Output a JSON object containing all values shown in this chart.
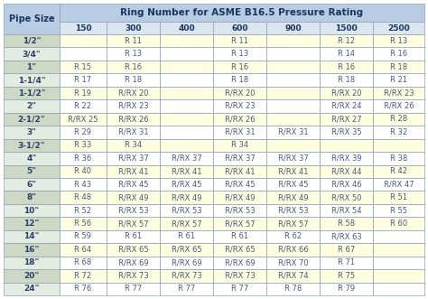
{
  "title": "Ring Number for ASME B16.5 Pressure Rating",
  "pressure_ratings": [
    "150",
    "300",
    "400",
    "600",
    "900",
    "1500",
    "2500"
  ],
  "rows": [
    [
      "1/2\"",
      "",
      "R 11",
      "",
      "R 11",
      "",
      "R 12",
      "R 13"
    ],
    [
      "3/4\"",
      "",
      "R 13",
      "",
      "R 13",
      "",
      "R 14",
      "R 16"
    ],
    [
      "1\"",
      "R 15",
      "R 16",
      "",
      "R 16",
      "",
      "R 16",
      "R 18"
    ],
    [
      "1-1/4\"",
      "R 17",
      "R 18",
      "",
      "R 18",
      "",
      "R 18",
      "R 21"
    ],
    [
      "1-1/2\"",
      "R 19",
      "R/RX 20",
      "",
      "R/RX 20",
      "",
      "R/RX 20",
      "R/RX 23"
    ],
    [
      "2\"",
      "R 22",
      "R/RX 23",
      "",
      "R/RX 23",
      "",
      "R/RX 24",
      "R/RX 26"
    ],
    [
      "2-1/2\"",
      "R/RX 25",
      "R/RX 26",
      "",
      "R/RX 26",
      "",
      "R/RX 27",
      "R 28"
    ],
    [
      "3\"",
      "R 29",
      "R/RX 31",
      "",
      "R/RX 31",
      "R/RX 31",
      "R/RX 35",
      "R 32"
    ],
    [
      "3-1/2\"",
      "R 33",
      "R 34",
      "",
      "R 34",
      "",
      "",
      ""
    ],
    [
      "4\"",
      "R 36",
      "R/RX 37",
      "R/RX 37",
      "R/RX 37",
      "R/RX 37",
      "R/RX 39",
      "R 38"
    ],
    [
      "5\"",
      "R 40",
      "R/RX 41",
      "R/RX 41",
      "R/RX 41",
      "R/RX 41",
      "R/RX 44",
      "R 42"
    ],
    [
      "6\"",
      "R 43",
      "R/RX 45",
      "R/RX 45",
      "R/RX 45",
      "R/RX 45",
      "R/RX 46",
      "R/RX 47"
    ],
    [
      "8\"",
      "R 48",
      "R/RX 49",
      "R/RX 49",
      "R/RX 49",
      "R/RX 49",
      "R/RX 50",
      "R 51"
    ],
    [
      "10\"",
      "R 52",
      "R/RX 53",
      "R/RX 53",
      "R/RX 53",
      "R/RX 53",
      "R/RX 54",
      "R 55"
    ],
    [
      "12\"",
      "R 56",
      "R/RX 57",
      "R/RX 57",
      "R/RX 57",
      "R/RX 57",
      "R 58",
      "R 60"
    ],
    [
      "14\"",
      "R 59",
      "R 61",
      "R 61",
      "R 61",
      "R 62",
      "R/RX 63",
      ""
    ],
    [
      "16\"",
      "R 64",
      "R/RX 65",
      "R/RX 65",
      "R/RX 65",
      "R/RX 66",
      "R 67",
      ""
    ],
    [
      "18\"",
      "R 68",
      "R/RX 69",
      "R/RX 69",
      "R/RX 69",
      "R/RX 70",
      "R 71",
      ""
    ],
    [
      "20\"",
      "R 72",
      "R/RX 73",
      "R/RX 73",
      "R/RX 73",
      "R/RX 74",
      "R 75",
      ""
    ],
    [
      "24\"",
      "R 76",
      "R 77",
      "R 77",
      "R 77",
      "R 78",
      "R 79",
      ""
    ]
  ],
  "header_bg": "#b8cce4",
  "subheader_bg": "#dce6f1",
  "pipe_col_bg_odd": "#cdd9c5",
  "pipe_col_bg_even": "#e2ece0",
  "data_bg_odd": "#fefee0",
  "data_bg_even": "#ffffff",
  "border_color": "#8da0b8",
  "text_color": "#4a5a7a",
  "header_text_color": "#1a3560",
  "pipe_text_color": "#2a3f6a"
}
